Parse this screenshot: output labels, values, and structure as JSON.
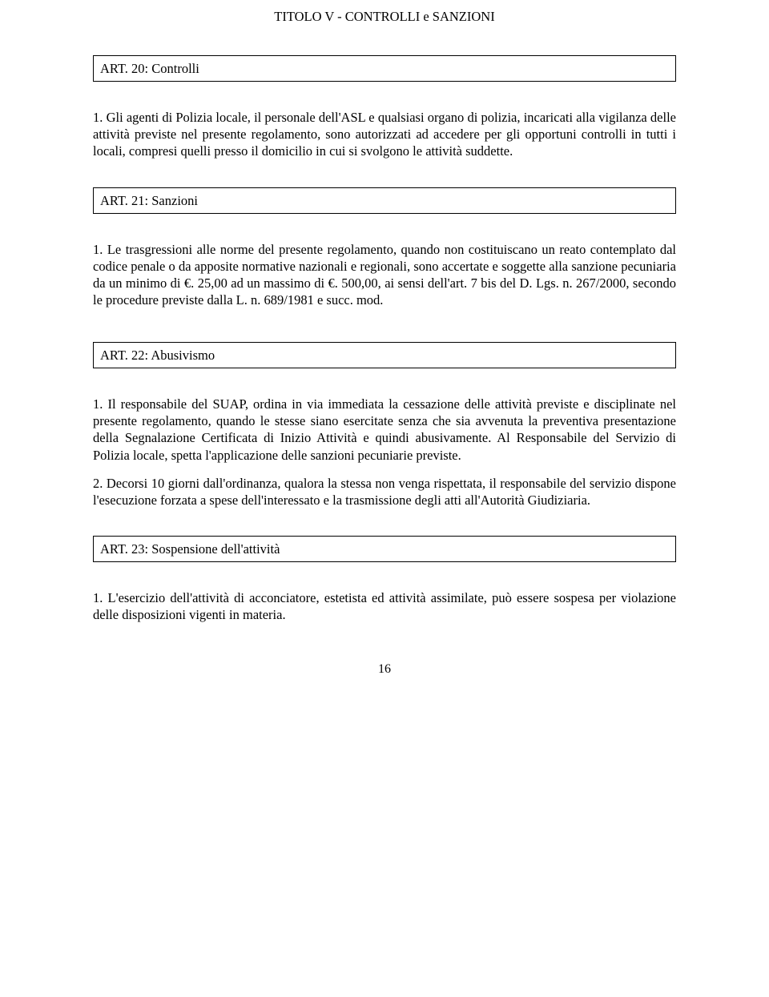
{
  "title": "TITOLO V - CONTROLLI e SANZIONI",
  "articles": {
    "a20": {
      "heading": "ART. 20: Controlli",
      "p1": "1. Gli agenti di Polizia locale, il personale dell'ASL e qualsiasi organo di polizia, incaricati alla vigilanza delle attività previste nel presente regolamento, sono autorizzati ad accedere per gli opportuni controlli in tutti i locali, compresi quelli presso il domicilio in cui si svolgono le attività suddette."
    },
    "a21": {
      "heading": "ART. 21: Sanzioni",
      "p1": "1. Le trasgressioni alle norme del presente regolamento, quando non costituiscano un reato contemplato dal codice penale o da apposite normative nazionali e regionali, sono accertate e soggette alla sanzione pecuniaria da un minimo di €. 25,00 ad un massimo di €. 500,00, ai sensi dell'art. 7 bis del D. Lgs. n. 267/2000, secondo le procedure previste dalla L. n. 689/1981 e succ. mod."
    },
    "a22": {
      "heading": "ART. 22: Abusivismo",
      "p1": "1. Il responsabile del SUAP, ordina in via immediata la cessazione delle attività previste e disciplinate nel presente regolamento, quando le stesse siano esercitate senza che sia avvenuta la preventiva presentazione della Segnalazione Certificata di Inizio Attività e quindi abusivamente. Al Responsabile del Servizio di Polizia locale, spetta l'applicazione delle sanzioni pecuniarie previste.",
      "p2": "2. Decorsi 10 giorni dall'ordinanza, qualora la stessa non venga rispettata, il responsabile del servizio dispone l'esecuzione forzata a spese dell'interessato e la trasmissione degli atti all'Autorità Giudiziaria."
    },
    "a23": {
      "heading": "ART. 23: Sospensione dell'attività",
      "p1": "1. L'esercizio dell'attività di acconciatore, estetista ed attività assimilate, può essere sospesa per violazione delle disposizioni vigenti in materia."
    }
  },
  "pageNumber": "16"
}
